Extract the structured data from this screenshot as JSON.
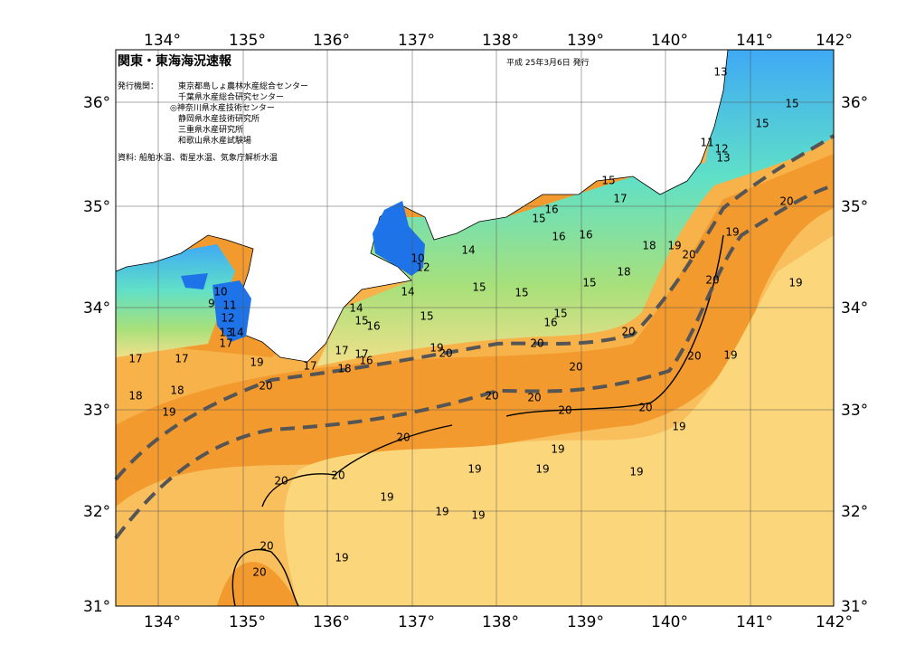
{
  "header": {
    "title": "関東・東海海況速報",
    "date": "平成 25年3月6日 発行",
    "issuer_label": "発行機関：",
    "issuers": [
      "東京都島しょ農林水産総合センター",
      "千葉県水産総合研究センター",
      "◎神奈川県水産技術センター",
      "静岡県水産技術研究所",
      "三重県水産研究所",
      "和歌山県水産試験場"
    ],
    "source": "資料: 船舶水温、衛星水温、気象庁解析水温"
  },
  "map": {
    "lon_labels": [
      "134°",
      "135°",
      "136°",
      "137°",
      "138°",
      "139°",
      "140°",
      "141°",
      "142°"
    ],
    "lat_labels": [
      "36°",
      "35°",
      "34°",
      "33°",
      "32°",
      "31°"
    ],
    "contour_labels": [
      13,
      15,
      15,
      11,
      12,
      13,
      15,
      17,
      16,
      15,
      14,
      10,
      12,
      16,
      16,
      18,
      19,
      20,
      19,
      18,
      15,
      15,
      15,
      14,
      20,
      19,
      20,
      10,
      9,
      11,
      12,
      13,
      14,
      17,
      14,
      15,
      16,
      15,
      15,
      16,
      20,
      17,
      17,
      16,
      18,
      17,
      19,
      20,
      20,
      19,
      17,
      17,
      18,
      18,
      19,
      20,
      20,
      20,
      19,
      20,
      20,
      20,
      20,
      19,
      20,
      19,
      20,
      20,
      19,
      19,
      19,
      19,
      19,
      19,
      20,
      20,
      19
    ]
  }
}
